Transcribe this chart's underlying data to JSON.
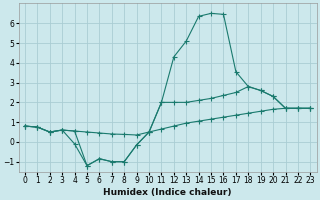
{
  "xlabel": "Humidex (Indice chaleur)",
  "background_color": "#cce8ec",
  "grid_color": "#aacdd4",
  "line_color": "#1a7a6e",
  "xlim": [
    -0.5,
    23.5
  ],
  "ylim": [
    -1.5,
    7.0
  ],
  "yticks": [
    -1,
    0,
    1,
    2,
    3,
    4,
    5,
    6
  ],
  "xticks": [
    0,
    1,
    2,
    3,
    4,
    5,
    6,
    7,
    8,
    9,
    10,
    11,
    12,
    13,
    14,
    15,
    16,
    17,
    18,
    19,
    20,
    21,
    22,
    23
  ],
  "line1_x": [
    0,
    1,
    2,
    3,
    4,
    5,
    6,
    7,
    8,
    9,
    10,
    11,
    12,
    13,
    14,
    15,
    16,
    17,
    18,
    19,
    20,
    21,
    22,
    23
  ],
  "line1_y": [
    0.8,
    0.75,
    0.5,
    0.6,
    -0.1,
    -1.2,
    -0.85,
    -1.0,
    -1.0,
    -0.15,
    0.5,
    2.0,
    4.3,
    5.1,
    6.35,
    6.5,
    6.45,
    3.55,
    2.8,
    2.6,
    2.3,
    1.7,
    1.7,
    1.7
  ],
  "line2_x": [
    0,
    1,
    2,
    3,
    4,
    5,
    6,
    7,
    8,
    9,
    10,
    11,
    12,
    13,
    14,
    15,
    16,
    17,
    18,
    19,
    20,
    21,
    22,
    23
  ],
  "line2_y": [
    0.8,
    0.75,
    0.5,
    0.6,
    0.55,
    -1.2,
    -0.85,
    -1.0,
    -1.0,
    -0.15,
    0.5,
    2.0,
    2.0,
    2.0,
    2.1,
    2.2,
    2.35,
    2.5,
    2.8,
    2.6,
    2.3,
    1.7,
    1.7,
    1.7
  ],
  "line3_x": [
    0,
    1,
    2,
    3,
    4,
    5,
    6,
    7,
    8,
    9,
    10,
    11,
    12,
    13,
    14,
    15,
    16,
    17,
    18,
    19,
    20,
    21,
    22,
    23
  ],
  "line3_y": [
    0.8,
    0.75,
    0.5,
    0.6,
    0.55,
    0.5,
    0.45,
    0.4,
    0.38,
    0.35,
    0.5,
    0.65,
    0.8,
    0.95,
    1.05,
    1.15,
    1.25,
    1.35,
    1.45,
    1.55,
    1.65,
    1.7,
    1.7,
    1.7
  ]
}
